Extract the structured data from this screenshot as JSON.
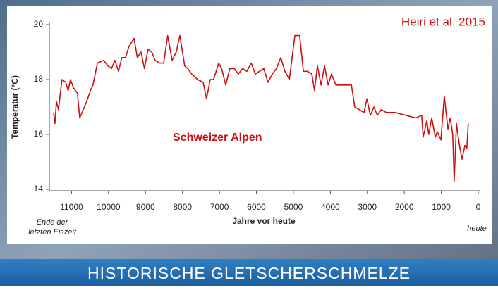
{
  "chart_data": {
    "type": "line",
    "source": "Heiri et al. 2015",
    "label": "Schweizer Alpen",
    "y_label": "Temperatur (°C)",
    "x_label": "Jahre vor heute",
    "x_start_note": [
      "Ende der",
      "letzten Eiszeit"
    ],
    "x_end_note": "heute",
    "x": [
      11487,
      11450,
      11410,
      11353,
      11260,
      11160,
      11090,
      11030,
      10950,
      10840,
      10780,
      10590,
      10490,
      10420,
      10300,
      10130,
      10020,
      9920,
      9830,
      9730,
      9640,
      9540,
      9450,
      9310,
      9220,
      9120,
      9030,
      8930,
      8830,
      8740,
      8620,
      8510,
      8400,
      8280,
      8170,
      8070,
      7940,
      7860,
      7750,
      7590,
      7440,
      7350,
      7250,
      7160,
      7020,
      6940,
      6830,
      6720,
      6600,
      6490,
      6370,
      6260,
      6140,
      6030,
      5920,
      5800,
      5690,
      5570,
      5460,
      5340,
      5230,
      5110,
      4960,
      4830,
      4730,
      4620,
      4500,
      4430,
      4350,
      4250,
      4160,
      4060,
      3970,
      3850,
      3680,
      3430,
      3340,
      3210,
      3090,
      3010,
      2920,
      2820,
      2730,
      2630,
      2480,
      2250,
      1970,
      1680,
      1530,
      1490,
      1390,
      1340,
      1260,
      1160,
      1110,
      1010,
      920,
      820,
      760,
      690,
      650,
      590,
      520,
      440,
      360,
      310,
      270
    ],
    "series": [
      {
        "color": "#cc1010",
        "values": [
          16.8,
          16.4,
          17.2,
          16.9,
          18.0,
          17.9,
          17.6,
          18.0,
          17.7,
          17.5,
          16.6,
          17.2,
          17.6,
          17.8,
          18.6,
          18.7,
          18.5,
          18.4,
          18.7,
          18.3,
          18.8,
          18.8,
          19.2,
          19.5,
          18.8,
          19.0,
          18.4,
          19.1,
          19.0,
          18.7,
          18.6,
          18.6,
          19.6,
          18.7,
          19.0,
          19.6,
          18.5,
          18.4,
          18.2,
          18.0,
          17.9,
          17.3,
          18.0,
          18.0,
          18.6,
          18.4,
          17.8,
          18.4,
          18.4,
          18.2,
          18.4,
          18.3,
          18.6,
          18.2,
          18.3,
          18.4,
          17.9,
          18.2,
          18.4,
          18.8,
          18.3,
          18.0,
          19.6,
          19.6,
          18.3,
          18.3,
          18.2,
          17.6,
          18.5,
          17.8,
          18.5,
          17.8,
          18.2,
          17.8,
          17.8,
          17.8,
          17.0,
          16.9,
          16.8,
          17.3,
          16.7,
          17.0,
          16.7,
          16.9,
          16.8,
          16.8,
          16.7,
          16.6,
          16.7,
          15.9,
          16.5,
          16.0,
          16.6,
          15.9,
          16.1,
          15.8,
          17.4,
          16.2,
          16.6,
          16.0,
          14.3,
          16.4,
          15.7,
          15.1,
          15.6,
          15.5,
          16.4
        ]
      }
    ],
    "xlim": [
      11600,
      0
    ],
    "xticks": [
      11000,
      10000,
      9000,
      8000,
      7000,
      6000,
      5000,
      4000,
      3000,
      2000,
      1000,
      0
    ],
    "ylim": [
      14,
      20
    ],
    "yticks": [
      14,
      16,
      18,
      20
    ],
    "grid": false
  },
  "banner": "HISTORISCHE GLETSCHERSCHMELZE"
}
